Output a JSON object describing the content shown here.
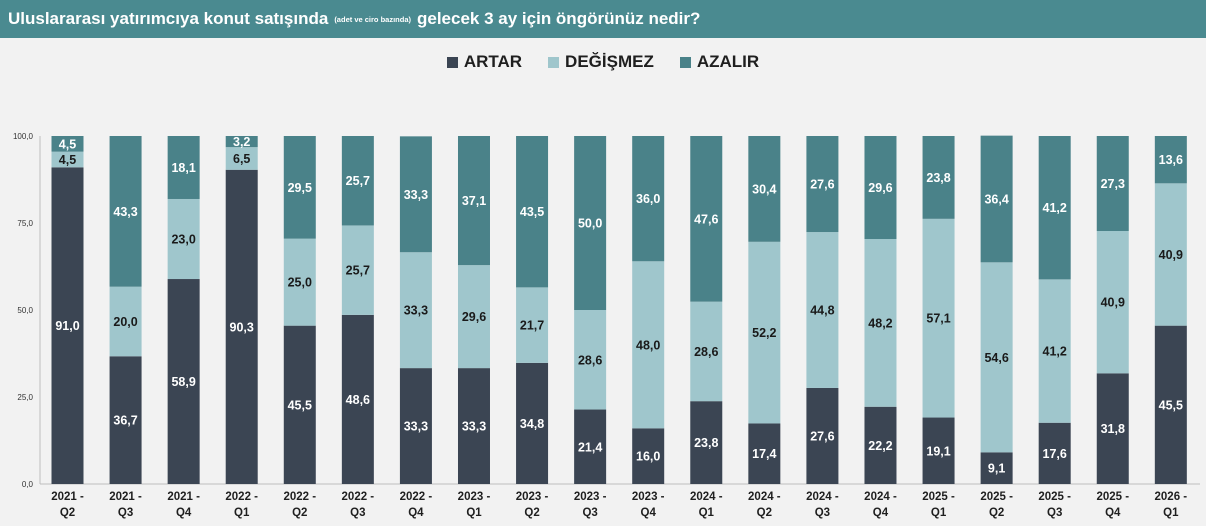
{
  "title": {
    "main": "Uluslararası yatırımcıya konut satışında",
    "note": "(adet ve ciro bazında)",
    "rest": "gelecek 3 ay için öngörünüz nedir?"
  },
  "colors": {
    "header_bg": "#4a8a90",
    "artar": "#3b4553",
    "degismez": "#9fc6cc",
    "azalir": "#4a8289"
  },
  "chart_data": {
    "type": "bar",
    "stacked": true,
    "title": "Uluslararası yatırımcıya konut satışında (adet ve ciro bazında) gelecek 3 ay için öngörünüz nedir?",
    "xlabel": "",
    "ylabel": "",
    "ylim": [
      0,
      100
    ],
    "yticks": [
      "0,0",
      "25,0",
      "50,0",
      "75,0",
      "100,0"
    ],
    "legend_position": "top-center",
    "categories": [
      [
        "2021 -",
        "Q2"
      ],
      [
        "2021 -",
        "Q3"
      ],
      [
        "2021 -",
        "Q4"
      ],
      [
        "2022 -",
        "Q1"
      ],
      [
        "2022 -",
        "Q2"
      ],
      [
        "2022 -",
        "Q3"
      ],
      [
        "2022 -",
        "Q4"
      ],
      [
        "2023 -",
        "Q1"
      ],
      [
        "2023 -",
        "Q2"
      ],
      [
        "2023 -",
        "Q3"
      ],
      [
        "2023 -",
        "Q4"
      ],
      [
        "2024 -",
        "Q1"
      ],
      [
        "2024 -",
        "Q2"
      ],
      [
        "2024 -",
        "Q3"
      ],
      [
        "2024 -",
        "Q4"
      ],
      [
        "2025 -",
        "Q1"
      ],
      [
        "2025 -",
        "Q2"
      ],
      [
        "2025 -",
        "Q3"
      ],
      [
        "2025 -",
        "Q4"
      ],
      [
        "2026 -",
        "Q1"
      ]
    ],
    "series": [
      {
        "name": "ARTAR",
        "key": "artar",
        "values": [
          91.0,
          36.7,
          58.9,
          90.3,
          45.5,
          48.6,
          33.3,
          33.3,
          34.8,
          21.4,
          16.0,
          23.8,
          17.4,
          27.6,
          22.2,
          19.1,
          9.1,
          17.6,
          31.8,
          45.5
        ],
        "labels": [
          "91,0",
          "36,7",
          "58,9",
          "90,3",
          "45,5",
          "48,6",
          "33,3",
          "33,3",
          "34,8",
          "21,4",
          "16,0",
          "23,8",
          "17,4",
          "27,6",
          "22,2",
          "19,1",
          "9,1",
          "17,6",
          "31,8",
          "45,5"
        ]
      },
      {
        "name": "DEĞİŞMEZ",
        "key": "degismez",
        "values": [
          4.5,
          20.0,
          23.0,
          6.5,
          25.0,
          25.7,
          33.3,
          29.6,
          21.7,
          28.6,
          48.0,
          28.6,
          52.2,
          44.8,
          48.2,
          57.1,
          54.6,
          41.2,
          40.9,
          40.9
        ],
        "labels": [
          "4,5",
          "20,0",
          "23,0",
          "6,5",
          "25,0",
          "25,7",
          "33,3",
          "29,6",
          "21,7",
          "28,6",
          "48,0",
          "28,6",
          "52,2",
          "44,8",
          "48,2",
          "57,1",
          "54,6",
          "41,2",
          "40,9",
          "40,9"
        ]
      },
      {
        "name": "AZALIR",
        "key": "azalir",
        "values": [
          4.5,
          43.3,
          18.1,
          3.2,
          29.5,
          25.7,
          33.3,
          37.1,
          43.5,
          50.0,
          36.0,
          47.6,
          30.4,
          27.6,
          29.6,
          23.8,
          36.4,
          41.2,
          27.3,
          13.6
        ],
        "labels": [
          "4,5",
          "43,3",
          "18,1",
          "3,2",
          "29,5",
          "25,7",
          "33,3",
          "37,1",
          "43,5",
          "50,0",
          "36,0",
          "47,6",
          "30,4",
          "27,6",
          "29,6",
          "23,8",
          "36,4",
          "41,2",
          "27,3",
          "13,6"
        ]
      }
    ]
  }
}
